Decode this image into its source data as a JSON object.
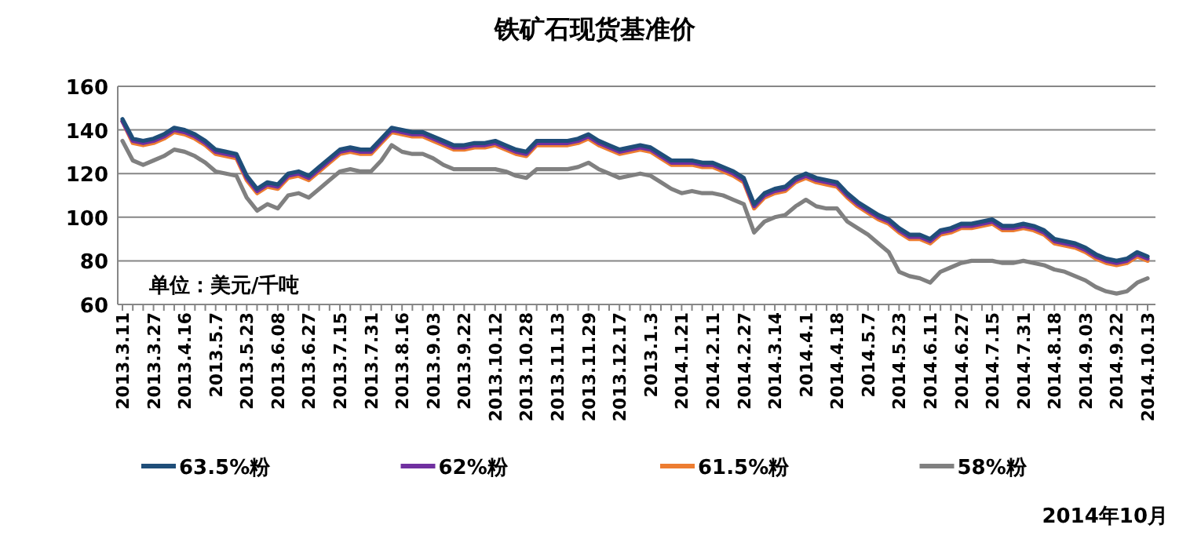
{
  "chart_data": {
    "type": "line",
    "title": "铁矿石现货基准价",
    "categories": [
      "2013.3.11",
      null,
      null,
      "2013.3.27",
      null,
      null,
      "2013.4.16",
      null,
      null,
      "2013.5.7",
      null,
      null,
      "2013.5.23",
      null,
      null,
      "2013.6.08",
      null,
      null,
      "2013.6.27",
      null,
      null,
      "2013.7.15",
      null,
      null,
      "2013.7.31",
      null,
      null,
      "2013.8.16",
      null,
      null,
      "2013.9.03",
      null,
      null,
      "2013.9.22",
      null,
      null,
      "2013.10.12",
      null,
      null,
      "2013.10.28",
      null,
      null,
      "2013.11.13",
      null,
      null,
      "2013.11.29",
      null,
      null,
      "2013.12.17",
      null,
      null,
      "2013.1.3",
      null,
      null,
      "2014.1.21",
      null,
      null,
      "2014.2.11",
      null,
      null,
      "2014.2.27",
      null,
      null,
      "2014.3.14",
      null,
      null,
      "2014.4.1",
      null,
      null,
      "2014.4.18",
      null,
      null,
      "2014.5.7",
      null,
      null,
      "2014.5.23",
      null,
      null,
      "2014.6.11",
      null,
      null,
      "2014.6.27",
      null,
      null,
      "2014.7.15",
      null,
      null,
      "2014.7.31",
      null,
      null,
      "2014.8.18",
      null,
      null,
      "2014.9.03",
      null,
      null,
      "2014.9.22",
      null,
      null,
      "2014.10.13"
    ],
    "series": [
      {
        "name": "63.5%粉",
        "color": "#1f4e79",
        "values": [
          145,
          136,
          135,
          136,
          138,
          141,
          140,
          138,
          135,
          131,
          130,
          129,
          119,
          113,
          116,
          115,
          120,
          121,
          119,
          123,
          127,
          131,
          132,
          131,
          131,
          136,
          141,
          140,
          139,
          139,
          137,
          135,
          133,
          133,
          134,
          134,
          135,
          133,
          131,
          130,
          135,
          135,
          135,
          135,
          136,
          138,
          135,
          133,
          131,
          132,
          133,
          132,
          129,
          126,
          126,
          126,
          125,
          125,
          123,
          121,
          118,
          106,
          111,
          113,
          114,
          118,
          120,
          118,
          117,
          116,
          111,
          107,
          104,
          101,
          99,
          95,
          92,
          92,
          90,
          94,
          95,
          97,
          97,
          98,
          99,
          96,
          96,
          97,
          96,
          94,
          90,
          89,
          88,
          86,
          83,
          81,
          80,
          81,
          84,
          82
        ]
      },
      {
        "name": "62%粉",
        "color": "#7030a0",
        "values": [
          144,
          135,
          134,
          135,
          137,
          140,
          139,
          137,
          134,
          130,
          129,
          128,
          118,
          112,
          115,
          114,
          119,
          120,
          118,
          122,
          126,
          130,
          131,
          130,
          130,
          135,
          140,
          139,
          138,
          138,
          136,
          134,
          132,
          132,
          133,
          133,
          134,
          132,
          130,
          129,
          134,
          134,
          134,
          134,
          135,
          137,
          134,
          132,
          130,
          131,
          132,
          131,
          128,
          125,
          125,
          125,
          124,
          124,
          122,
          120,
          117,
          105,
          110,
          112,
          113,
          117,
          119,
          117,
          116,
          115,
          110,
          106,
          103,
          100,
          98,
          94,
          91,
          91,
          89,
          93,
          94,
          96,
          96,
          97,
          98,
          95,
          95,
          96,
          95,
          93,
          89,
          88,
          87,
          85,
          82,
          80,
          79,
          80,
          83,
          81
        ]
      },
      {
        "name": "61.5%粉",
        "color": "#ed7d31",
        "values": [
          144,
          134,
          133,
          134,
          136,
          139,
          138,
          136,
          133,
          129,
          128,
          127,
          117,
          111,
          114,
          113,
          118,
          119,
          117,
          121,
          125,
          129,
          130,
          129,
          129,
          134,
          139,
          138,
          137,
          137,
          135,
          133,
          131,
          131,
          132,
          132,
          133,
          131,
          129,
          128,
          133,
          133,
          133,
          133,
          134,
          136,
          133,
          131,
          129,
          130,
          131,
          130,
          127,
          124,
          124,
          124,
          123,
          123,
          121,
          119,
          116,
          104,
          109,
          111,
          112,
          116,
          118,
          116,
          115,
          114,
          109,
          105,
          102,
          99,
          97,
          93,
          90,
          90,
          88,
          92,
          93,
          95,
          95,
          96,
          97,
          94,
          94,
          95,
          94,
          92,
          88,
          87,
          86,
          84,
          81,
          79,
          78,
          79,
          82,
          80
        ]
      },
      {
        "name": "58%粉",
        "color": "#808080",
        "values": [
          135,
          126,
          124,
          126,
          128,
          131,
          130,
          128,
          125,
          121,
          120,
          119,
          109,
          103,
          106,
          104,
          110,
          111,
          109,
          113,
          117,
          121,
          122,
          121,
          121,
          126,
          133,
          130,
          129,
          129,
          127,
          124,
          122,
          122,
          122,
          122,
          122,
          121,
          119,
          118,
          122,
          122,
          122,
          122,
          123,
          125,
          122,
          120,
          118,
          119,
          120,
          119,
          116,
          113,
          111,
          112,
          111,
          111,
          110,
          108,
          106,
          93,
          98,
          100,
          101,
          105,
          108,
          105,
          104,
          104,
          98,
          95,
          92,
          88,
          84,
          75,
          73,
          72,
          70,
          75,
          77,
          79,
          80,
          80,
          80,
          79,
          79,
          80,
          79,
          78,
          76,
          75,
          73,
          71,
          68,
          66,
          65,
          66,
          70,
          72
        ]
      }
    ],
    "ylim": [
      60,
      160
    ],
    "yticks": [
      60,
      80,
      100,
      120,
      140,
      160
    ],
    "grid": "y",
    "legend": "bottom",
    "annotations": [
      "单位：美元/千吨",
      "2014年10月"
    ]
  }
}
